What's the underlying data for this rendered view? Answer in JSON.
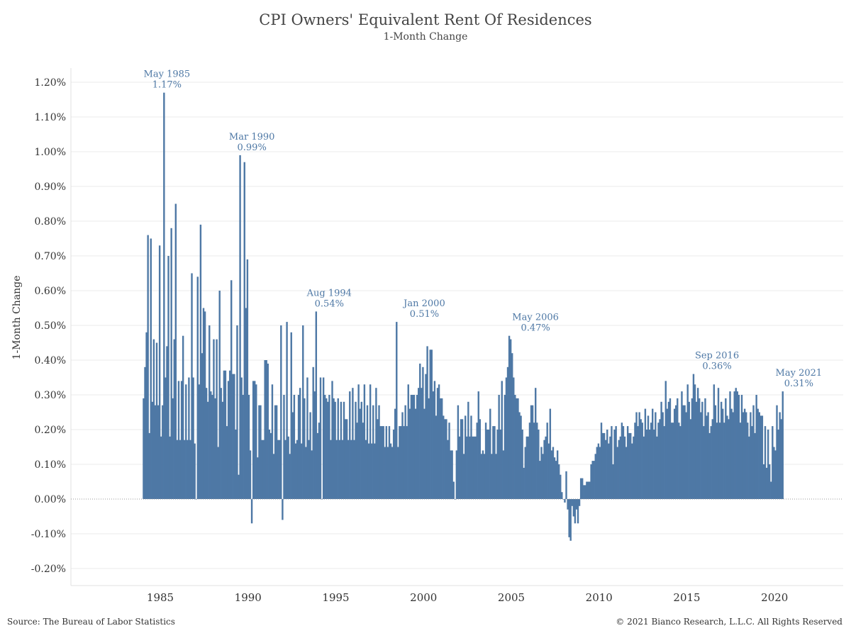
{
  "title": "CPI Owners' Equivalent Rent Of Residences",
  "subtitle": "1-Month Change",
  "footer": {
    "source": "Source: The Bureau of Labor Statistics",
    "copyright": "© 2021 Bianco Research, L.L.C. All Rights Reserved"
  },
  "chart_data": {
    "type": "bar",
    "ylabel": "1-Month Change",
    "xlabel": "",
    "ylim": [
      -0.2,
      1.2
    ],
    "xlim_years": [
      1981.1,
      1991.1
    ],
    "y_ticks": [
      -0.2,
      -0.1,
      0.0,
      0.1,
      0.2,
      0.3,
      0.4,
      0.5,
      0.6,
      0.7,
      0.8,
      0.9,
      1.0,
      1.1,
      1.2
    ],
    "y_tick_labels": [
      "-0.20%",
      "-0.10%",
      "0.00%",
      "0.10%",
      "0.20%",
      "0.30%",
      "0.40%",
      "0.50%",
      "0.60%",
      "0.70%",
      "0.80%",
      "0.90%",
      "1.00%",
      "1.10%",
      "1.20%"
    ],
    "x_ticks": [
      1985,
      1990,
      1995,
      2000,
      2005,
      2010,
      2015,
      2020
    ],
    "x_tick_labels": [
      "1985",
      "1990",
      "1995",
      "2000",
      "2005",
      "2010",
      "2015",
      "2020"
    ],
    "grid": true,
    "bar_color": "#4e78a5",
    "start": "1984-01",
    "series": [
      {
        "name": "",
        "values": [
          0.29,
          0.38,
          0.48,
          0.76,
          0.19,
          0.75,
          0.28,
          0.46,
          0.27,
          0.45,
          0.27,
          0.73,
          0.18,
          0.27,
          1.17,
          0.35,
          0.44,
          0.7,
          0.18,
          0.78,
          0.29,
          0.46,
          0.85,
          0.17,
          0.34,
          0.17,
          0.34,
          0.47,
          0.17,
          0.33,
          0.17,
          0.35,
          0.17,
          0.65,
          0.35,
          0.16,
          0.0,
          0.64,
          0.33,
          0.79,
          0.42,
          0.55,
          0.54,
          0.32,
          0.28,
          0.5,
          0.31,
          0.3,
          0.46,
          0.29,
          0.46,
          0.15,
          0.6,
          0.32,
          0.28,
          0.37,
          0.37,
          0.21,
          0.34,
          0.37,
          0.63,
          0.36,
          0.36,
          0.2,
          0.5,
          0.07,
          0.99,
          0.35,
          0.3,
          0.97,
          0.55,
          0.69,
          0.3,
          0.14,
          -0.07,
          0.34,
          0.34,
          0.33,
          0.12,
          0.27,
          0.27,
          0.17,
          0.17,
          0.4,
          0.4,
          0.39,
          0.2,
          0.19,
          0.33,
          0.13,
          0.27,
          0.27,
          0.17,
          0.17,
          0.5,
          -0.06,
          0.3,
          0.17,
          0.51,
          0.18,
          0.13,
          0.48,
          0.25,
          0.3,
          0.16,
          0.17,
          0.3,
          0.32,
          0.16,
          0.5,
          0.29,
          0.15,
          0.35,
          0.17,
          0.25,
          0.14,
          0.38,
          0.31,
          0.54,
          0.19,
          0.22,
          0.35,
          0.0,
          0.35,
          0.3,
          0.29,
          0.28,
          0.3,
          0.17,
          0.34,
          0.29,
          0.28,
          0.17,
          0.29,
          0.17,
          0.28,
          0.17,
          0.28,
          0.23,
          0.23,
          0.17,
          0.31,
          0.17,
          0.32,
          0.17,
          0.28,
          0.22,
          0.33,
          0.26,
          0.28,
          0.22,
          0.33,
          0.17,
          0.27,
          0.16,
          0.33,
          0.16,
          0.27,
          0.16,
          0.32,
          0.23,
          0.27,
          0.21,
          0.21,
          0.21,
          0.15,
          0.21,
          0.15,
          0.21,
          0.16,
          0.15,
          0.2,
          0.26,
          0.51,
          0.15,
          0.21,
          0.21,
          0.25,
          0.21,
          0.27,
          0.21,
          0.33,
          0.26,
          0.3,
          0.3,
          0.3,
          0.26,
          0.3,
          0.32,
          0.39,
          0.32,
          0.38,
          0.26,
          0.36,
          0.44,
          0.29,
          0.43,
          0.43,
          0.31,
          0.34,
          0.24,
          0.32,
          0.33,
          0.29,
          0.29,
          0.24,
          0.23,
          0.23,
          0.17,
          0.22,
          0.14,
          0.14,
          0.05,
          0.0,
          0.14,
          0.27,
          0.18,
          0.23,
          0.23,
          0.13,
          0.24,
          0.18,
          0.28,
          0.18,
          0.24,
          0.18,
          0.18,
          0.18,
          0.22,
          0.31,
          0.23,
          0.13,
          0.14,
          0.13,
          0.22,
          0.2,
          0.2,
          0.26,
          0.13,
          0.21,
          0.21,
          0.13,
          0.2,
          0.3,
          0.2,
          0.34,
          0.14,
          0.3,
          0.35,
          0.38,
          0.47,
          0.46,
          0.42,
          0.35,
          0.3,
          0.29,
          0.29,
          0.25,
          0.24,
          0.2,
          0.09,
          0.15,
          0.18,
          0.18,
          0.22,
          0.27,
          0.27,
          0.22,
          0.32,
          0.22,
          0.2,
          0.11,
          0.15,
          0.13,
          0.17,
          0.18,
          0.22,
          0.16,
          0.26,
          0.14,
          0.15,
          0.12,
          0.11,
          0.14,
          0.1,
          0.07,
          0.02,
          0.0,
          -0.01,
          0.08,
          -0.03,
          -0.11,
          -0.12,
          -0.02,
          -0.05,
          -0.07,
          -0.03,
          -0.07,
          -0.02,
          0.06,
          0.06,
          0.04,
          0.04,
          0.05,
          0.05,
          0.05,
          0.1,
          0.11,
          0.11,
          0.13,
          0.15,
          0.16,
          0.15,
          0.22,
          0.19,
          0.19,
          0.17,
          0.2,
          0.16,
          0.18,
          0.21,
          0.1,
          0.2,
          0.21,
          0.15,
          0.17,
          0.18,
          0.22,
          0.21,
          0.18,
          0.15,
          0.21,
          0.19,
          0.19,
          0.16,
          0.18,
          0.22,
          0.25,
          0.21,
          0.25,
          0.23,
          0.22,
          0.18,
          0.26,
          0.2,
          0.24,
          0.2,
          0.22,
          0.26,
          0.2,
          0.25,
          0.18,
          0.22,
          0.23,
          0.28,
          0.25,
          0.21,
          0.34,
          0.26,
          0.28,
          0.29,
          0.22,
          0.22,
          0.26,
          0.27,
          0.29,
          0.22,
          0.21,
          0.31,
          0.27,
          0.27,
          0.25,
          0.33,
          0.28,
          0.23,
          0.29,
          0.36,
          0.33,
          0.28,
          0.32,
          0.29,
          0.25,
          0.28,
          0.21,
          0.29,
          0.24,
          0.25,
          0.19,
          0.21,
          0.23,
          0.33,
          0.27,
          0.22,
          0.32,
          0.22,
          0.28,
          0.26,
          0.22,
          0.29,
          0.24,
          0.23,
          0.31,
          0.26,
          0.25,
          0.31,
          0.32,
          0.31,
          0.3,
          0.22,
          0.3,
          0.25,
          0.26,
          0.25,
          0.22,
          0.18,
          0.25,
          0.21,
          0.27,
          0.19,
          0.3,
          0.26,
          0.25,
          0.24,
          0.24,
          0.1,
          0.21,
          0.09,
          0.2,
          0.1,
          0.05,
          0.21,
          0.15,
          0.14,
          0.27,
          0.2,
          0.25,
          0.23,
          0.31
        ]
      }
    ],
    "annotations": [
      {
        "date": "May 1985",
        "value": "1.17%",
        "x": 1985.33,
        "y": 1.17
      },
      {
        "date": "Mar 1990",
        "value": "0.99%",
        "x": 1990.17,
        "y": 0.99
      },
      {
        "date": "Aug 1994",
        "value": "0.54%",
        "x": 1994.58,
        "y": 0.54
      },
      {
        "date": "Jan 2000",
        "value": "0.51%",
        "x": 2000.0,
        "y": 0.51
      },
      {
        "date": "May 2006",
        "value": "0.47%",
        "x": 2006.33,
        "y": 0.47
      },
      {
        "date": "Sep 2016",
        "value": "0.36%",
        "x": 2016.67,
        "y": 0.36
      },
      {
        "date": "May 2021",
        "value": "0.31%",
        "x": 2021.33,
        "y": 0.31
      }
    ]
  }
}
